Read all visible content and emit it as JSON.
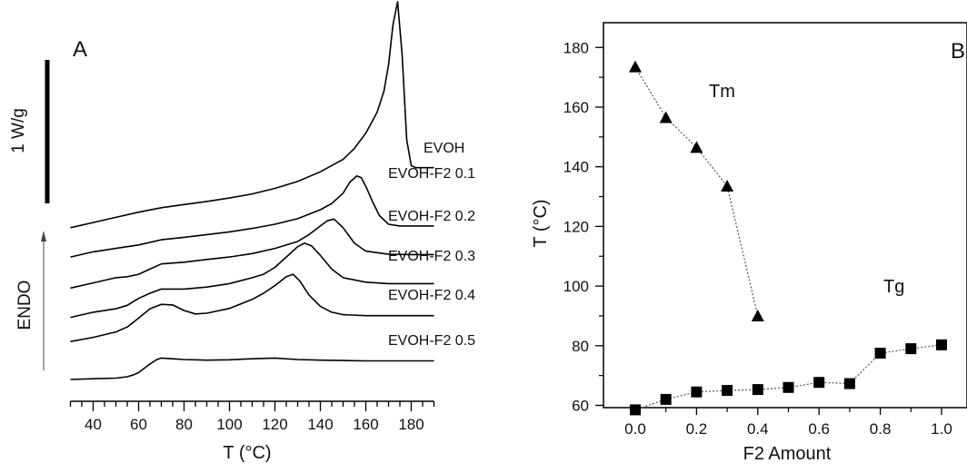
{
  "chart_data": [
    {
      "panel": "A",
      "type": "line",
      "xlabel": "T (°C)",
      "xlim": [
        30,
        190
      ],
      "x_ticks": [
        40,
        60,
        80,
        100,
        120,
        140,
        160,
        180
      ],
      "ylabel": "ENDO",
      "scale_bar_label": "1 W/g",
      "series": [
        {
          "name": "EVOH",
          "x": [
            30,
            40,
            50,
            60,
            70,
            80,
            90,
            100,
            110,
            120,
            130,
            140,
            150,
            155,
            160,
            165,
            168,
            170,
            172,
            174,
            176,
            178,
            180,
            182,
            185,
            190
          ],
          "y": [
            5.4,
            5.55,
            5.7,
            5.85,
            5.98,
            6.07,
            6.16,
            6.26,
            6.38,
            6.54,
            6.74,
            7.02,
            7.38,
            7.7,
            8.14,
            8.75,
            9.36,
            10.12,
            11.3,
            11.95,
            10.4,
            7.95,
            7.2,
            7.14,
            7.14,
            7.14
          ]
        },
        {
          "name": "EVOH-F2 0.1",
          "x": [
            30,
            40,
            50,
            60,
            70,
            80,
            90,
            100,
            110,
            120,
            130,
            140,
            145,
            150,
            153,
            156,
            158,
            160,
            163,
            166,
            170,
            175,
            182,
            190
          ],
          "y": [
            4.55,
            4.7,
            4.8,
            4.9,
            5.05,
            5.12,
            5.2,
            5.28,
            5.38,
            5.5,
            5.66,
            5.92,
            6.1,
            6.4,
            6.72,
            6.9,
            6.85,
            6.6,
            6.15,
            5.75,
            5.5,
            5.45,
            5.45,
            5.45
          ]
        },
        {
          "name": "EVOH-F2 0.2",
          "x": [
            30,
            40,
            50,
            55,
            60,
            65,
            70,
            80,
            90,
            100,
            110,
            120,
            130,
            135,
            140,
            143,
            146,
            150,
            155,
            160,
            170,
            180,
            190
          ],
          "y": [
            3.65,
            3.8,
            3.95,
            3.98,
            4.05,
            4.2,
            4.35,
            4.4,
            4.48,
            4.55,
            4.65,
            4.8,
            5.0,
            5.2,
            5.45,
            5.6,
            5.65,
            5.4,
            4.95,
            4.72,
            4.63,
            4.62,
            4.62
          ]
        },
        {
          "name": "EVOH-F2 0.3",
          "x": [
            30,
            40,
            50,
            55,
            60,
            65,
            70,
            80,
            90,
            100,
            110,
            115,
            120,
            125,
            130,
            133,
            136,
            140,
            145,
            150,
            160,
            170,
            180,
            190
          ],
          "y": [
            2.8,
            2.95,
            3.05,
            3.15,
            3.35,
            3.5,
            3.62,
            3.62,
            3.68,
            3.78,
            3.95,
            4.05,
            4.25,
            4.55,
            4.85,
            4.95,
            4.88,
            4.6,
            4.2,
            3.95,
            3.82,
            3.78,
            3.78,
            3.78
          ]
        },
        {
          "name": "EVOH-F2 0.4",
          "x": [
            30,
            40,
            50,
            55,
            60,
            65,
            70,
            75,
            80,
            85,
            90,
            100,
            110,
            115,
            120,
            125,
            128,
            131,
            135,
            140,
            145,
            150,
            160,
            170,
            180,
            190
          ],
          "y": [
            2.1,
            2.22,
            2.38,
            2.52,
            2.78,
            3.05,
            3.18,
            3.16,
            3.0,
            2.9,
            2.92,
            3.06,
            3.32,
            3.5,
            3.72,
            3.98,
            4.05,
            3.85,
            3.45,
            3.12,
            2.95,
            2.88,
            2.85,
            2.85,
            2.85,
            2.85
          ]
        },
        {
          "name": "EVOH-F2 0.5",
          "x": [
            30,
            40,
            50,
            55,
            58,
            60,
            62,
            65,
            68,
            70,
            75,
            80,
            90,
            100,
            110,
            120,
            130,
            140,
            150,
            160,
            170,
            180,
            190
          ],
          "y": [
            1.0,
            1.02,
            1.04,
            1.08,
            1.14,
            1.2,
            1.3,
            1.45,
            1.58,
            1.62,
            1.6,
            1.58,
            1.56,
            1.57,
            1.6,
            1.62,
            1.58,
            1.56,
            1.55,
            1.54,
            1.54,
            1.54,
            1.54
          ]
        }
      ]
    },
    {
      "panel": "B",
      "type": "scatter",
      "xlabel": "F2 Amount",
      "ylabel": "T (°C)",
      "xlim": [
        -0.1,
        1.07
      ],
      "ylim": [
        51.6,
        180
      ],
      "x_ticks": [
        0.0,
        0.2,
        0.4,
        0.6,
        0.8,
        1.0
      ],
      "x_tick_labels": [
        "0.0",
        "0.2",
        "0.4",
        "0.6",
        "0.8",
        "1.0"
      ],
      "y_ticks": [
        60,
        80,
        100,
        120,
        140,
        160,
        180
      ],
      "series": [
        {
          "name": "Tm",
          "marker": "triangle",
          "line": "dotted",
          "x": [
            0.0,
            0.1,
            0.2,
            0.3,
            0.4
          ],
          "y": [
            173.5,
            156.5,
            146.5,
            133.5,
            90.0
          ]
        },
        {
          "name": "Tg",
          "marker": "square",
          "line": "dotted",
          "x": [
            0.0,
            0.1,
            0.2,
            0.3,
            0.4,
            0.5,
            0.6,
            0.7,
            0.8,
            0.9,
            1.0
          ],
          "y": [
            58.5,
            62.0,
            64.5,
            65.0,
            65.3,
            66.0,
            67.7,
            67.3,
            77.5,
            79.0,
            80.3
          ]
        }
      ]
    }
  ]
}
